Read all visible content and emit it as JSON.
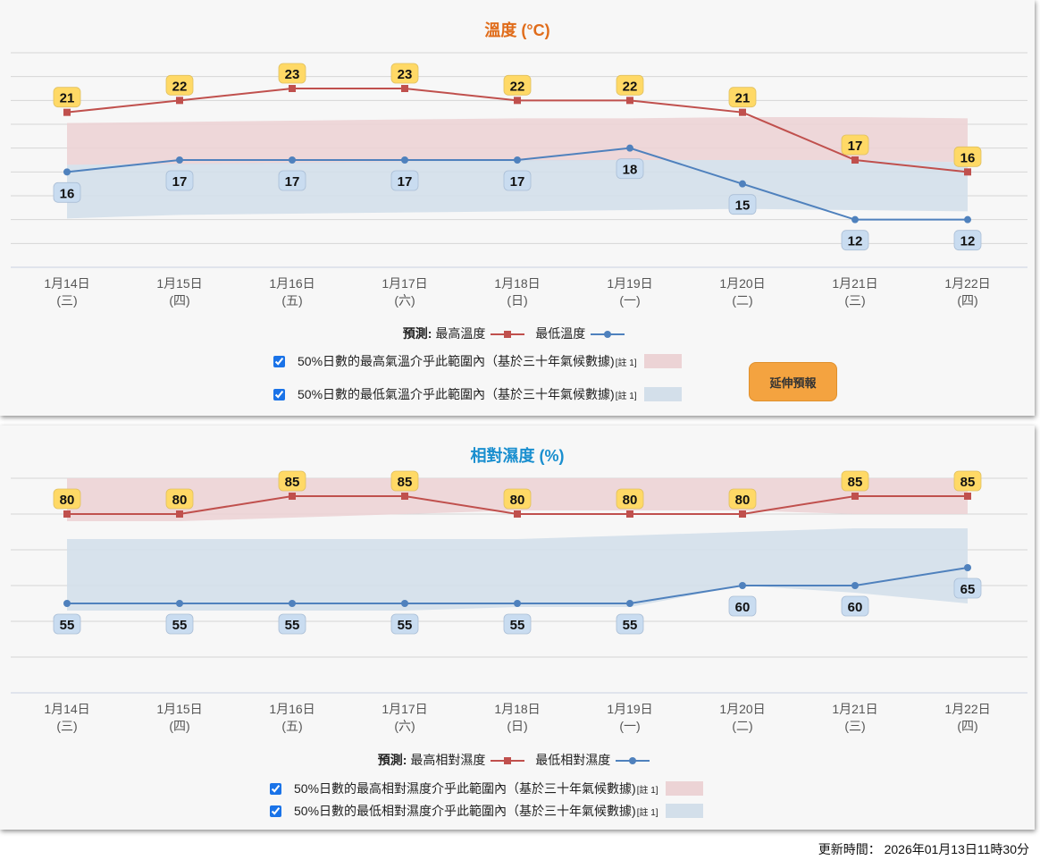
{
  "chart_data": [
    {
      "type": "line",
      "title": "溫度 (°C)",
      "title_color": "#e06c1a",
      "categories": [
        [
          "1月14日",
          "(三)"
        ],
        [
          "1月15日",
          "(四)"
        ],
        [
          "1月16日",
          "(五)"
        ],
        [
          "1月17日",
          "(六)"
        ],
        [
          "1月18日",
          "(日)"
        ],
        [
          "1月19日",
          "(一)"
        ],
        [
          "1月20日",
          "(二)"
        ],
        [
          "1月21日",
          "(三)"
        ],
        [
          "1月22日",
          "(四)"
        ]
      ],
      "ylim": [
        8,
        26
      ],
      "grid_step": 2,
      "series": [
        {
          "name": "最高溫度",
          "values": [
            21,
            22,
            23,
            23,
            22,
            22,
            21,
            17,
            16
          ],
          "color": "#c0504d",
          "marker": "square"
        },
        {
          "name": "最低溫度",
          "values": [
            16,
            17,
            17,
            17,
            17,
            18,
            15,
            12,
            12
          ],
          "color": "#4f81bd",
          "marker": "circle"
        }
      ],
      "bands": [
        {
          "name": "50%日數的最高氣溫介乎此範圍內",
          "upper": [
            20.1,
            20.2,
            20.3,
            20.4,
            20.5,
            20.5,
            20.6,
            20.6,
            20.5
          ],
          "lower": [
            16.6,
            16.6,
            16.7,
            16.8,
            16.9,
            17.0,
            17.0,
            17.0,
            16.8
          ],
          "color": "#ecd3d5"
        },
        {
          "name": "50%日數的最低氣溫介乎此範圍內",
          "upper": [
            16.6,
            16.7,
            16.8,
            16.9,
            17.0,
            17.0,
            17.0,
            17.0,
            16.8
          ],
          "lower": [
            12.1,
            12.4,
            12.5,
            12.6,
            12.7,
            12.8,
            12.9,
            12.8,
            12.7
          ],
          "color": "#d3dfea"
        }
      ]
    },
    {
      "type": "line",
      "title": "相對濕度 (%)",
      "title_color": "#1a8fcf",
      "categories": [
        [
          "1月14日",
          "(三)"
        ],
        [
          "1月15日",
          "(四)"
        ],
        [
          "1月16日",
          "(五)"
        ],
        [
          "1月17日",
          "(六)"
        ],
        [
          "1月18日",
          "(日)"
        ],
        [
          "1月19日",
          "(一)"
        ],
        [
          "1月20日",
          "(二)"
        ],
        [
          "1月21日",
          "(三)"
        ],
        [
          "1月22日",
          "(四)"
        ]
      ],
      "ylim": [
        30,
        90
      ],
      "grid_step": 10,
      "series": [
        {
          "name": "最高相對濕度",
          "values": [
            80,
            80,
            85,
            85,
            80,
            80,
            80,
            85,
            85
          ],
          "color": "#c0504d",
          "marker": "square"
        },
        {
          "name": "最低相對濕度",
          "values": [
            55,
            55,
            55,
            55,
            55,
            55,
            60,
            60,
            65
          ],
          "color": "#4f81bd",
          "marker": "circle"
        }
      ],
      "bands": [
        {
          "name": "50%日數的最高相對濕度介乎此範圍內",
          "upper": [
            90,
            90,
            90,
            90,
            90,
            90,
            90,
            90,
            90
          ],
          "lower": [
            78,
            78,
            79,
            80,
            81,
            81,
            81,
            80,
            80
          ],
          "color": "#ecd3d5"
        },
        {
          "name": "50%日數的最低相對濕度介乎此範圍內",
          "upper": [
            73,
            73,
            73,
            73,
            73,
            74,
            75,
            76,
            76
          ],
          "lower": [
            53,
            53,
            53,
            53,
            54,
            54,
            60,
            58,
            55
          ],
          "color": "#d3dfea"
        }
      ]
    }
  ],
  "temp": {
    "legend_prefix": "預測:",
    "max_label": "最高溫度",
    "min_label": "最低溫度",
    "band_max_label": "50%日數的最高氣溫介乎此範圍內（基於三十年氣候數據)",
    "band_min_label": "50%日數的最低氣溫介乎此範圍內（基於三十年氣候數據)",
    "note": "[註 1]",
    "extend_button": "延伸預報"
  },
  "rh": {
    "legend_prefix": "預測:",
    "max_label": "最高相對濕度",
    "min_label": "最低相對濕度",
    "band_max_label": "50%日數的最高相對濕度介乎此範圍內（基於三十年氣候數據)",
    "band_min_label": "50%日數的最低相對濕度介乎此範圍內（基於三十年氣候數據)",
    "note": "[註 1]"
  },
  "footer": {
    "updated": "更新時間： 2026年01月13日11時30分"
  }
}
